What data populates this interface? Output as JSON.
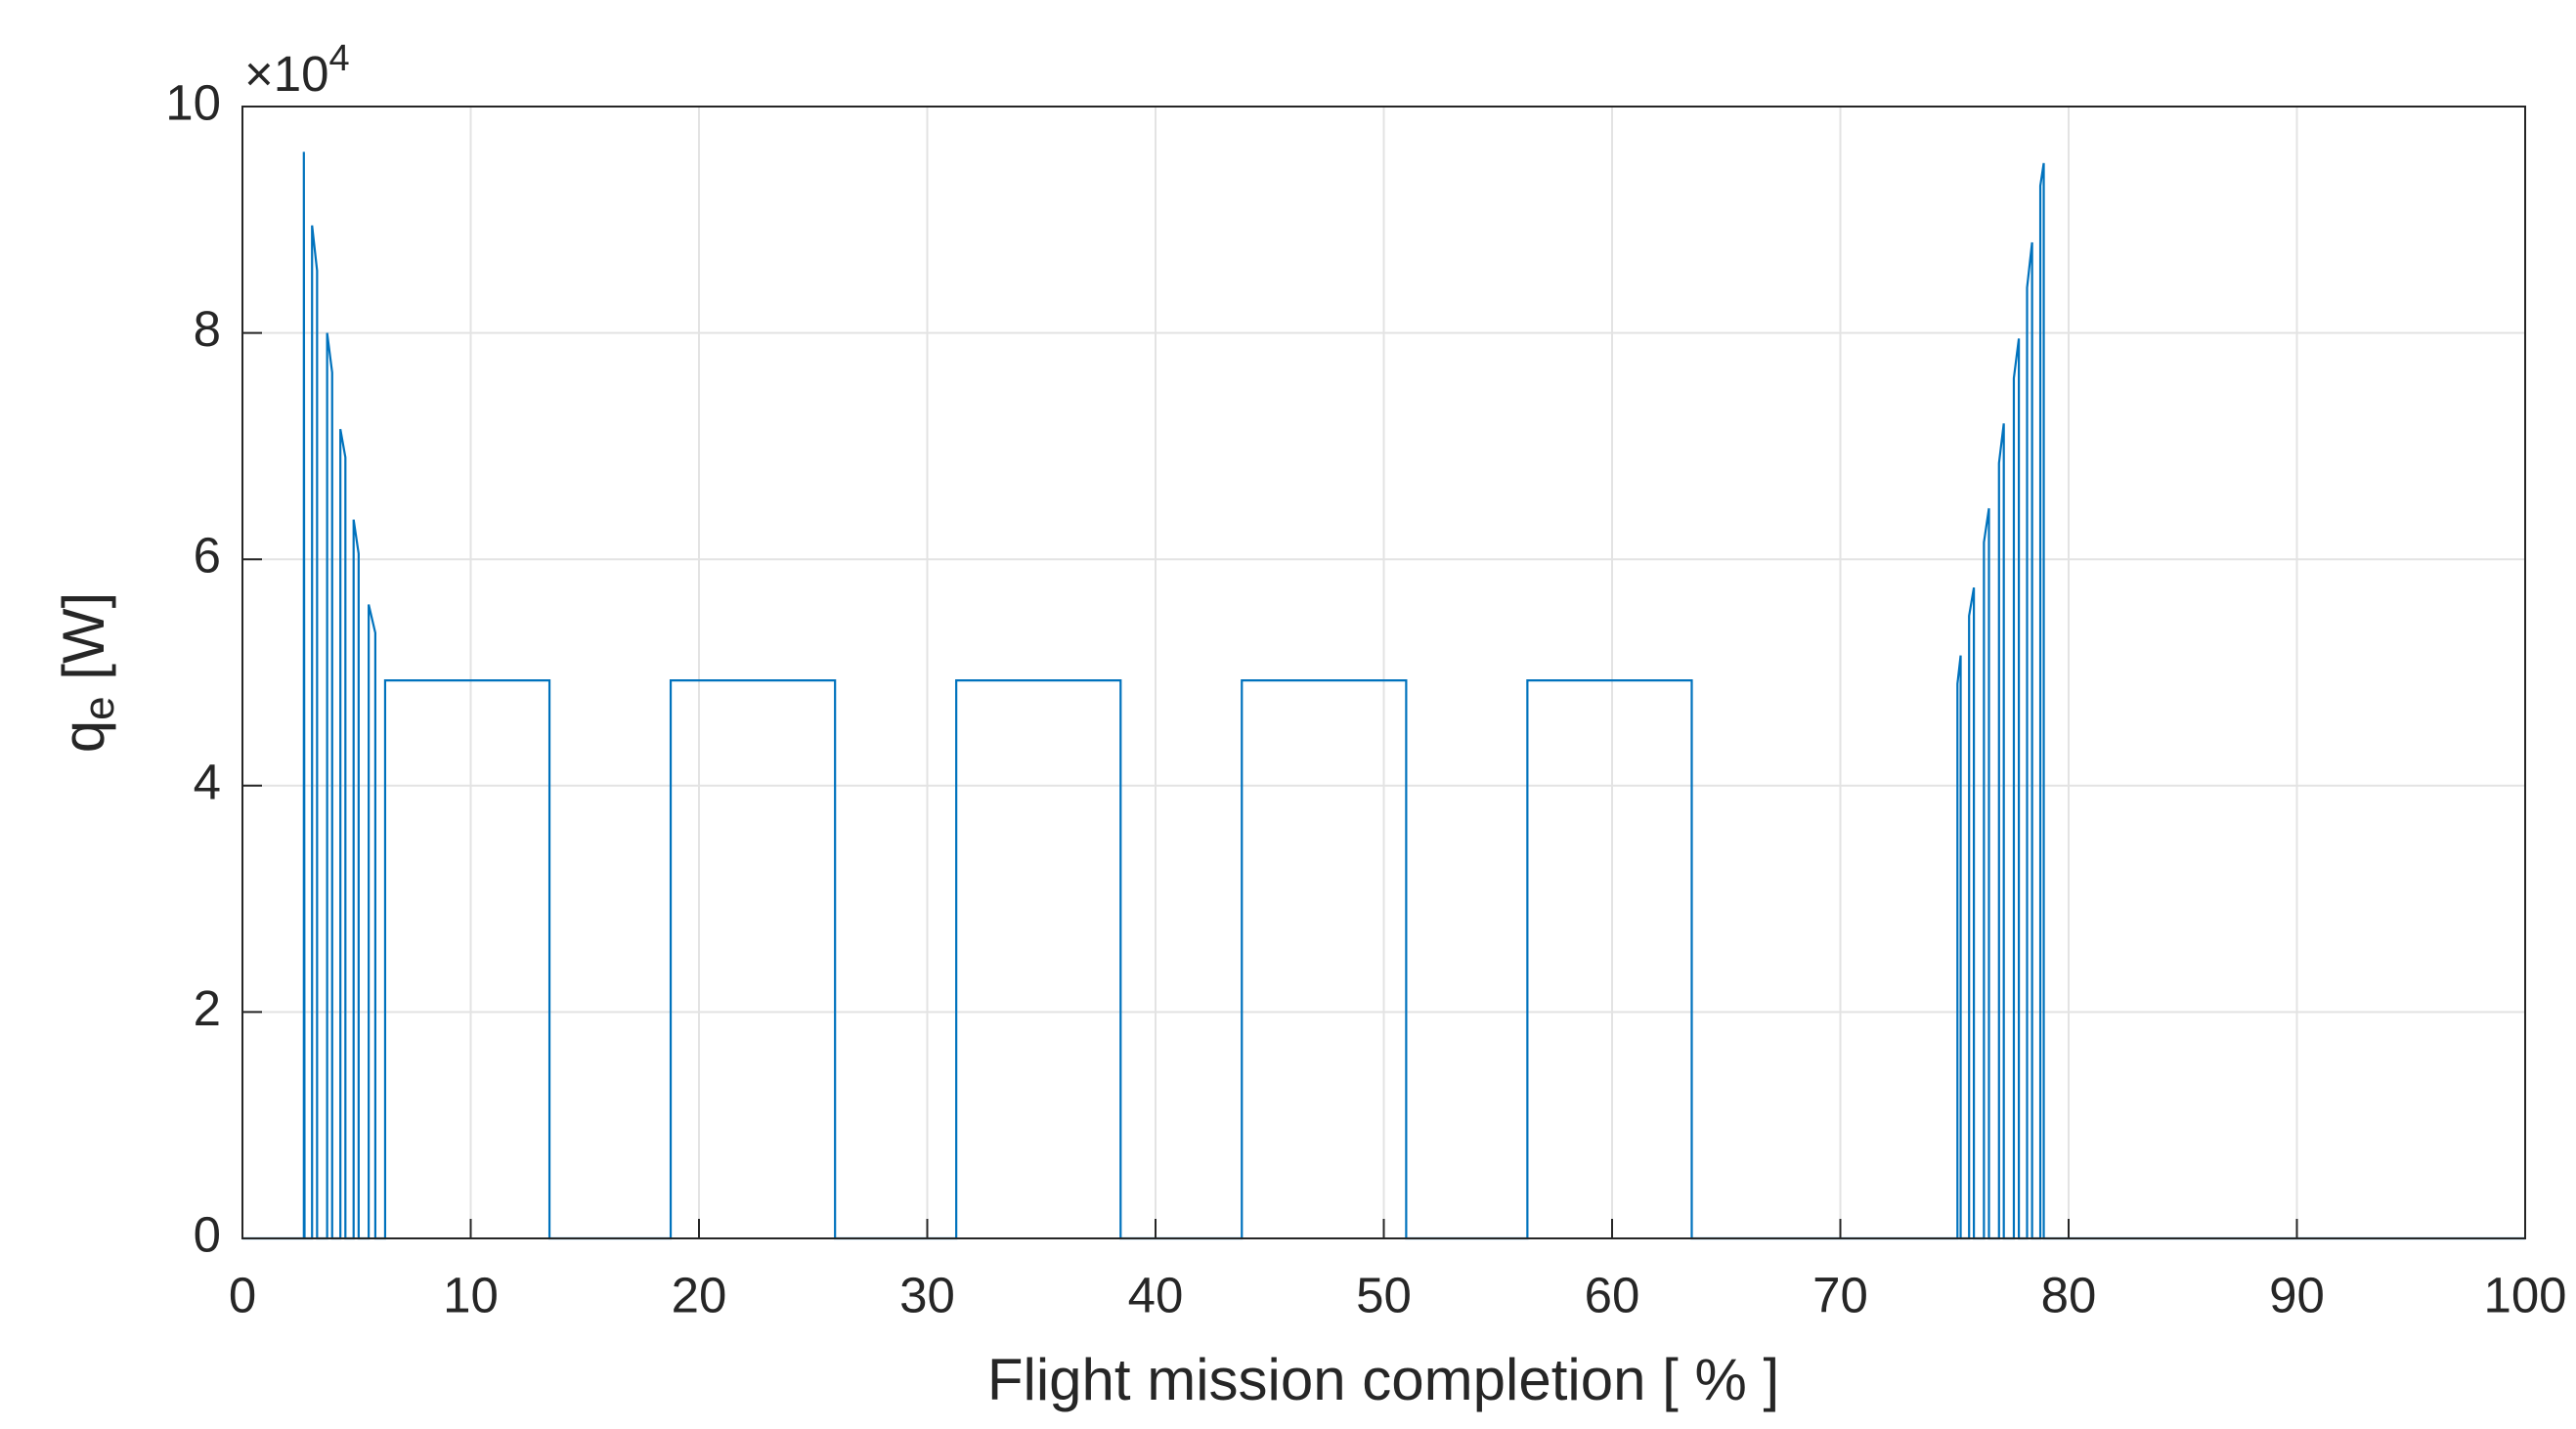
{
  "chart_data": {
    "type": "line",
    "xlabel": "Flight mission completion [ % ]",
    "ylabel": {
      "main": "q",
      "sub": "e",
      "unit": "[W]"
    },
    "y_multiplier": {
      "base": "×10",
      "exponent": "4"
    },
    "xlim": [
      0,
      100
    ],
    "xticks": [
      0,
      10,
      20,
      30,
      40,
      50,
      60,
      70,
      80,
      90,
      100
    ],
    "ylim": [
      0,
      10
    ],
    "yticks": [
      0,
      2,
      4,
      6,
      8,
      10
    ],
    "grid": true,
    "series": [
      {
        "color": "#0072bd",
        "x": [
          0,
          2.69,
          2.69,
          2.72,
          3.05,
          3.05,
          3.27,
          3.27,
          3.71,
          3.71,
          3.93,
          3.93,
          4.29,
          4.29,
          4.51,
          4.51,
          4.87,
          4.87,
          5.09,
          5.09,
          5.53,
          5.53,
          5.82,
          5.82,
          6.25,
          6.25,
          13.45,
          13.45,
          18.76,
          18.76,
          25.96,
          25.96,
          31.27,
          31.27,
          38.47,
          38.47,
          43.78,
          43.78,
          50.98,
          50.98,
          56.29,
          56.29,
          63.49,
          63.49,
          75.13,
          75.13,
          75.27,
          75.27,
          75.64,
          75.64,
          75.85,
          75.85,
          76.29,
          76.29,
          76.51,
          76.51,
          76.95,
          76.95,
          77.16,
          77.16,
          77.6,
          77.6,
          77.82,
          77.82,
          78.18,
          78.18,
          78.4,
          78.4,
          78.76,
          78.76,
          78.91,
          78.91,
          100
        ],
        "values": [
          0,
          0,
          9.6,
          0,
          0,
          8.95,
          8.55,
          0,
          0,
          8.0,
          7.65,
          0,
          0,
          7.15,
          6.9,
          0,
          0,
          6.35,
          6.05,
          0,
          0,
          5.6,
          5.35,
          0,
          0,
          4.93,
          4.93,
          0,
          0,
          4.93,
          4.93,
          0,
          0,
          4.93,
          4.93,
          0,
          0,
          4.93,
          4.93,
          0,
          0,
          4.93,
          4.93,
          0,
          0,
          4.9,
          5.15,
          0,
          0,
          5.5,
          5.75,
          0,
          0,
          6.15,
          6.45,
          0,
          0,
          6.85,
          7.2,
          0,
          0,
          7.6,
          7.95,
          0,
          0,
          8.4,
          8.8,
          0,
          0,
          9.3,
          9.5,
          0,
          0
        ]
      }
    ]
  }
}
